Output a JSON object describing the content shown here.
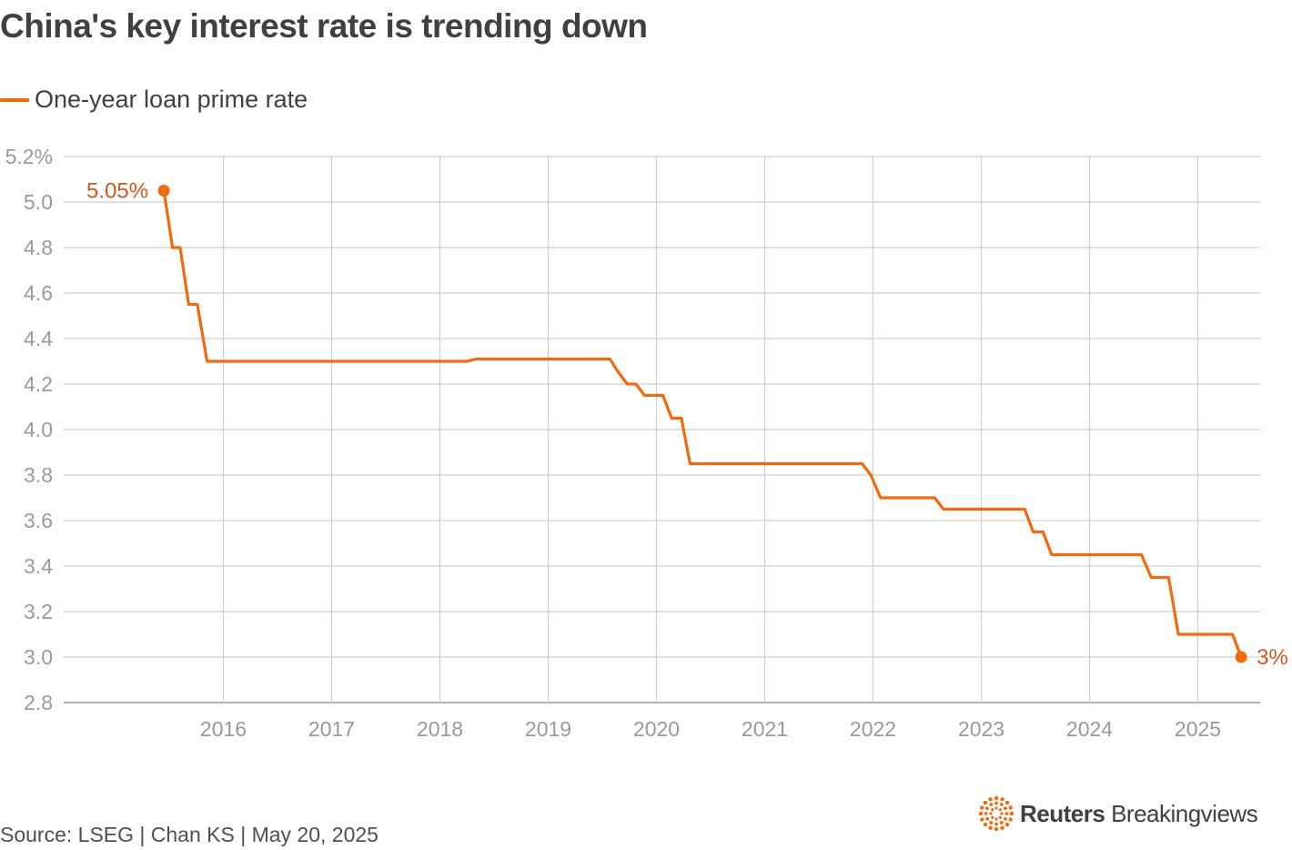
{
  "title": "China's key interest rate is trending down",
  "legend": {
    "label": "One-year loan prime rate"
  },
  "source": "Source: LSEG | Chan KS | May 20, 2025",
  "logo": {
    "brand": "Reuters",
    "product": "Breakingviews"
  },
  "colors": {
    "line": "#f26a0f",
    "grid": "#cfcfcf",
    "axis_text": "#9a9a9a",
    "label": "#d2571a"
  },
  "chart_data": {
    "type": "line",
    "title": "China's key interest rate is trending down",
    "xlabel": "",
    "ylabel": "",
    "ylim": [
      2.8,
      5.2
    ],
    "xlim": [
      2015.0,
      2025.75
    ],
    "y_ticks": [
      {
        "value": 5.2,
        "label": "5.2%"
      },
      {
        "value": 5.0,
        "label": "5.0"
      },
      {
        "value": 4.8,
        "label": "4.8"
      },
      {
        "value": 4.6,
        "label": "4.6"
      },
      {
        "value": 4.4,
        "label": "4.4"
      },
      {
        "value": 4.2,
        "label": "4.2"
      },
      {
        "value": 4.0,
        "label": "4.0"
      },
      {
        "value": 3.8,
        "label": "3.8"
      },
      {
        "value": 3.6,
        "label": "3.6"
      },
      {
        "value": 3.4,
        "label": "3.4"
      },
      {
        "value": 3.2,
        "label": "3.2"
      },
      {
        "value": 3.0,
        "label": "3.0"
      },
      {
        "value": 2.8,
        "label": "2.8"
      }
    ],
    "x_ticks": [
      {
        "value": 2016,
        "label": "2016"
      },
      {
        "value": 2017,
        "label": "2017"
      },
      {
        "value": 2018,
        "label": "2018"
      },
      {
        "value": 2019,
        "label": "2019"
      },
      {
        "value": 2020,
        "label": "2020"
      },
      {
        "value": 2021,
        "label": "2021"
      },
      {
        "value": 2022,
        "label": "2022"
      },
      {
        "value": 2023,
        "label": "2023"
      },
      {
        "value": 2024,
        "label": "2024"
      },
      {
        "value": 2025,
        "label": "2025"
      }
    ],
    "grid": true,
    "legend_position": "top-left",
    "series": [
      {
        "name": "One-year loan prime rate",
        "points": [
          [
            2015.45,
            5.05
          ],
          [
            2015.53,
            4.8
          ],
          [
            2015.6,
            4.8
          ],
          [
            2015.68,
            4.55
          ],
          [
            2015.76,
            4.55
          ],
          [
            2015.85,
            4.3
          ],
          [
            2018.25,
            4.3
          ],
          [
            2018.33,
            4.31
          ],
          [
            2019.57,
            4.31
          ],
          [
            2019.65,
            4.25
          ],
          [
            2019.73,
            4.2
          ],
          [
            2019.81,
            4.2
          ],
          [
            2019.89,
            4.15
          ],
          [
            2020.06,
            4.15
          ],
          [
            2020.14,
            4.05
          ],
          [
            2020.23,
            4.05
          ],
          [
            2020.31,
            3.85
          ],
          [
            2021.9,
            3.85
          ],
          [
            2021.98,
            3.8
          ],
          [
            2022.07,
            3.7
          ],
          [
            2022.57,
            3.7
          ],
          [
            2022.65,
            3.65
          ],
          [
            2023.4,
            3.65
          ],
          [
            2023.48,
            3.55
          ],
          [
            2023.57,
            3.55
          ],
          [
            2023.65,
            3.45
          ],
          [
            2024.48,
            3.45
          ],
          [
            2024.57,
            3.35
          ],
          [
            2024.73,
            3.35
          ],
          [
            2024.82,
            3.1
          ],
          [
            2025.32,
            3.1
          ],
          [
            2025.4,
            3.0
          ]
        ]
      }
    ],
    "annotations": [
      {
        "x": 2015.45,
        "y": 5.05,
        "label": "5.05%",
        "side": "left"
      },
      {
        "x": 2025.4,
        "y": 3.0,
        "label": "3%",
        "side": "right"
      }
    ]
  }
}
